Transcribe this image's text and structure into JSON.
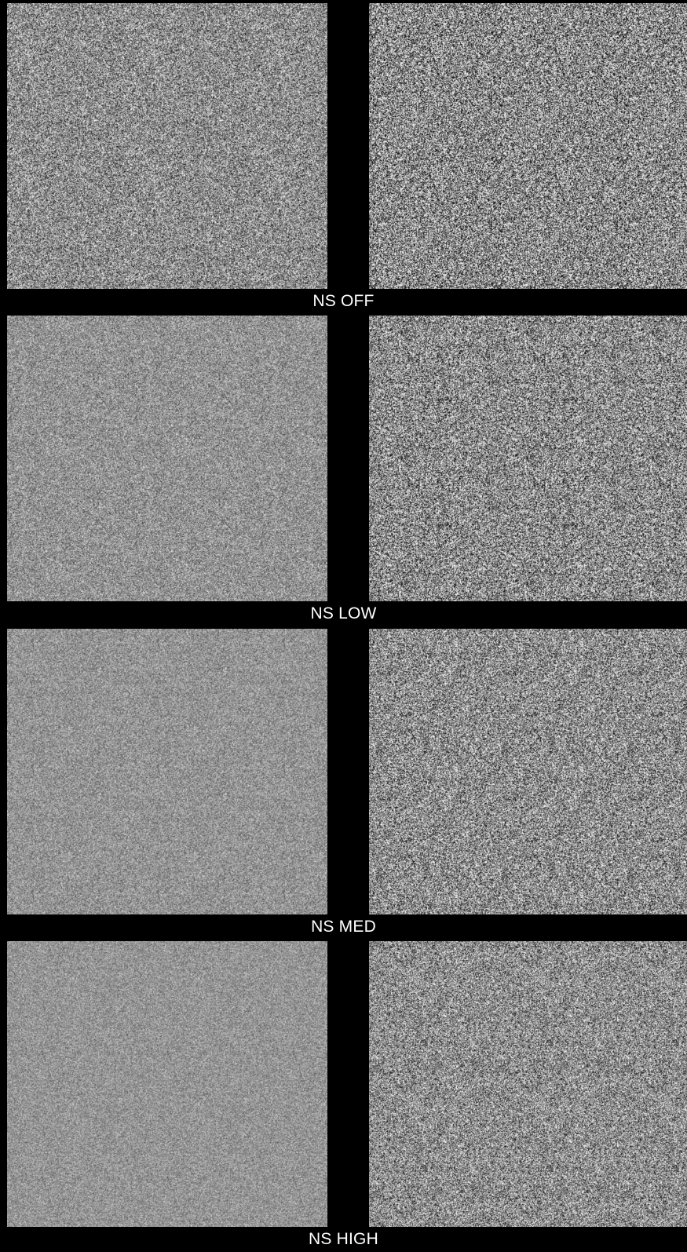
{
  "comparisons": [
    {
      "label": "NS OFF",
      "panels": [
        {
          "side": "left",
          "base": "#8d8d8d",
          "noise_level": 0.34
        },
        {
          "side": "right",
          "base": "#8a8a8a",
          "noise_level": 0.5
        }
      ]
    },
    {
      "label": "NS LOW",
      "panels": [
        {
          "side": "left",
          "base": "#939393",
          "noise_level": 0.22
        },
        {
          "side": "right",
          "base": "#8b8b8b",
          "noise_level": 0.44
        }
      ]
    },
    {
      "label": "NS MED",
      "panels": [
        {
          "side": "left",
          "base": "#949494",
          "noise_level": 0.18
        },
        {
          "side": "right",
          "base": "#8d8d8d",
          "noise_level": 0.4
        }
      ]
    },
    {
      "label": "NS HIGH",
      "panels": [
        {
          "side": "left",
          "base": "#959595",
          "noise_level": 0.16
        },
        {
          "side": "right",
          "base": "#8e8e8e",
          "noise_level": 0.36
        }
      ]
    }
  ]
}
